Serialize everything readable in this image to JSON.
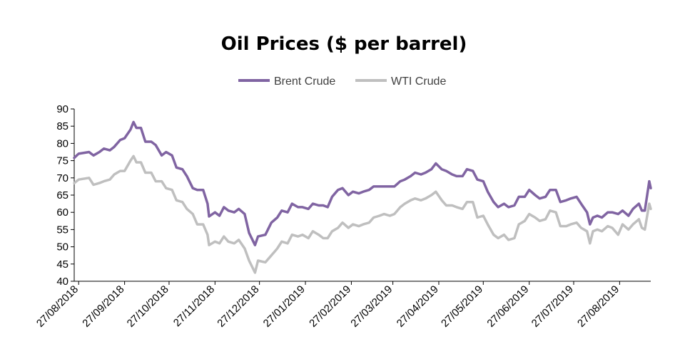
{
  "chart_data": {
    "type": "line",
    "title": "Oil Prices ($ per barrel)",
    "xlabel": "",
    "ylabel": "",
    "ylim": [
      40,
      90
    ],
    "yticks": [
      "40",
      "45",
      "50",
      "55",
      "60",
      "65",
      "70",
      "75",
      "80",
      "85",
      "90"
    ],
    "xlim": [
      "2018-08-24",
      "2019-09-17"
    ],
    "xticks": [
      "27/08/2018",
      "27/09/2018",
      "27/10/2018",
      "27/11/2018",
      "27/12/2018",
      "27/01/2019",
      "27/02/2019",
      "27/03/2019",
      "27/04/2019",
      "27/05/2019",
      "27/06/2019",
      "27/07/2019",
      "27/08/2019"
    ],
    "grid": false,
    "legend": "top-center",
    "series": [
      {
        "name": "Brent Crude",
        "color": "#8064A2",
        "points": [
          [
            "2018-08-24",
            75.8
          ],
          [
            "2018-08-27",
            77.0
          ],
          [
            "2018-09-03",
            77.5
          ],
          [
            "2018-09-06",
            76.5
          ],
          [
            "2018-09-10",
            77.5
          ],
          [
            "2018-09-13",
            78.5
          ],
          [
            "2018-09-17",
            78.0
          ],
          [
            "2018-09-20",
            79.0
          ],
          [
            "2018-09-24",
            81.0
          ],
          [
            "2018-09-27",
            81.5
          ],
          [
            "2018-10-01",
            84.0
          ],
          [
            "2018-10-03",
            86.2
          ],
          [
            "2018-10-05",
            84.5
          ],
          [
            "2018-10-08",
            84.5
          ],
          [
            "2018-10-11",
            80.5
          ],
          [
            "2018-10-15",
            80.5
          ],
          [
            "2018-10-18",
            79.5
          ],
          [
            "2018-10-22",
            76.5
          ],
          [
            "2018-10-25",
            77.5
          ],
          [
            "2018-10-29",
            76.5
          ],
          [
            "2018-11-01",
            73.0
          ],
          [
            "2018-11-05",
            72.5
          ],
          [
            "2018-11-08",
            70.5
          ],
          [
            "2018-11-12",
            67.0
          ],
          [
            "2018-11-15",
            66.5
          ],
          [
            "2018-11-19",
            66.5
          ],
          [
            "2018-11-22",
            62.5
          ],
          [
            "2018-11-23",
            58.8
          ],
          [
            "2018-11-27",
            60.0
          ],
          [
            "2018-11-30",
            59.0
          ],
          [
            "2018-12-03",
            61.5
          ],
          [
            "2018-12-06",
            60.5
          ],
          [
            "2018-12-10",
            60.0
          ],
          [
            "2018-12-13",
            61.0
          ],
          [
            "2018-12-17",
            59.5
          ],
          [
            "2018-12-20",
            54.0
          ],
          [
            "2018-12-24",
            50.5
          ],
          [
            "2018-12-26",
            53.0
          ],
          [
            "2018-12-31",
            53.5
          ],
          [
            "2019-01-04",
            57.0
          ],
          [
            "2019-01-08",
            58.5
          ],
          [
            "2019-01-11",
            60.5
          ],
          [
            "2019-01-15",
            60.0
          ],
          [
            "2019-01-18",
            62.5
          ],
          [
            "2019-01-22",
            61.5
          ],
          [
            "2019-01-25",
            61.5
          ],
          [
            "2019-01-29",
            61.0
          ],
          [
            "2019-02-01",
            62.5
          ],
          [
            "2019-02-05",
            62.0
          ],
          [
            "2019-02-08",
            62.0
          ],
          [
            "2019-02-11",
            61.5
          ],
          [
            "2019-02-14",
            64.5
          ],
          [
            "2019-02-18",
            66.5
          ],
          [
            "2019-02-21",
            67.0
          ],
          [
            "2019-02-25",
            65.0
          ],
          [
            "2019-02-28",
            66.0
          ],
          [
            "2019-03-04",
            65.5
          ],
          [
            "2019-03-07",
            66.0
          ],
          [
            "2019-03-11",
            66.5
          ],
          [
            "2019-03-14",
            67.5
          ],
          [
            "2019-03-18",
            67.5
          ],
          [
            "2019-03-21",
            67.5
          ],
          [
            "2019-03-25",
            67.5
          ],
          [
            "2019-03-28",
            67.5
          ],
          [
            "2019-04-01",
            69.0
          ],
          [
            "2019-04-04",
            69.5
          ],
          [
            "2019-04-08",
            70.5
          ],
          [
            "2019-04-11",
            71.5
          ],
          [
            "2019-04-15",
            71.0
          ],
          [
            "2019-04-18",
            71.5
          ],
          [
            "2019-04-22",
            72.5
          ],
          [
            "2019-04-25",
            74.2
          ],
          [
            "2019-04-29",
            72.5
          ],
          [
            "2019-05-02",
            72.0
          ],
          [
            "2019-05-06",
            71.0
          ],
          [
            "2019-05-09",
            70.5
          ],
          [
            "2019-05-13",
            70.5
          ],
          [
            "2019-05-16",
            72.5
          ],
          [
            "2019-05-20",
            72.0
          ],
          [
            "2019-05-23",
            69.5
          ],
          [
            "2019-05-27",
            69.0
          ],
          [
            "2019-05-30",
            66.0
          ],
          [
            "2019-06-03",
            63.0
          ],
          [
            "2019-06-06",
            61.5
          ],
          [
            "2019-06-10",
            62.5
          ],
          [
            "2019-06-13",
            61.5
          ],
          [
            "2019-06-17",
            62.0
          ],
          [
            "2019-06-20",
            64.5
          ],
          [
            "2019-06-24",
            64.5
          ],
          [
            "2019-06-27",
            66.5
          ],
          [
            "2019-07-01",
            65.0
          ],
          [
            "2019-07-04",
            64.0
          ],
          [
            "2019-07-08",
            64.5
          ],
          [
            "2019-07-11",
            66.5
          ],
          [
            "2019-07-15",
            66.5
          ],
          [
            "2019-07-18",
            63.0
          ],
          [
            "2019-07-22",
            63.5
          ],
          [
            "2019-07-25",
            64.0
          ],
          [
            "2019-07-29",
            64.5
          ],
          [
            "2019-08-01",
            62.5
          ],
          [
            "2019-08-05",
            60.0
          ],
          [
            "2019-08-07",
            56.5
          ],
          [
            "2019-08-09",
            58.5
          ],
          [
            "2019-08-12",
            59.0
          ],
          [
            "2019-08-15",
            58.5
          ],
          [
            "2019-08-19",
            60.0
          ],
          [
            "2019-08-22",
            60.0
          ],
          [
            "2019-08-26",
            59.5
          ],
          [
            "2019-08-29",
            60.5
          ],
          [
            "2019-09-02",
            59.0
          ],
          [
            "2019-09-05",
            61.0
          ],
          [
            "2019-09-09",
            62.5
          ],
          [
            "2019-09-11",
            60.5
          ],
          [
            "2019-09-13",
            60.5
          ],
          [
            "2019-09-16",
            69.0
          ],
          [
            "2019-09-17",
            67.0
          ]
        ]
      },
      {
        "name": "WTI Crude",
        "color": "#BFBFBF",
        "points": [
          [
            "2018-08-24",
            68.5
          ],
          [
            "2018-08-27",
            69.5
          ],
          [
            "2018-09-03",
            70.0
          ],
          [
            "2018-09-06",
            68.0
          ],
          [
            "2018-09-10",
            68.5
          ],
          [
            "2018-09-13",
            69.0
          ],
          [
            "2018-09-17",
            69.5
          ],
          [
            "2018-09-20",
            71.0
          ],
          [
            "2018-09-24",
            72.0
          ],
          [
            "2018-09-27",
            72.0
          ],
          [
            "2018-10-01",
            75.0
          ],
          [
            "2018-10-03",
            76.3
          ],
          [
            "2018-10-05",
            74.5
          ],
          [
            "2018-10-08",
            74.5
          ],
          [
            "2018-10-11",
            71.5
          ],
          [
            "2018-10-15",
            71.5
          ],
          [
            "2018-10-18",
            69.0
          ],
          [
            "2018-10-22",
            69.0
          ],
          [
            "2018-10-25",
            67.0
          ],
          [
            "2018-10-29",
            66.5
          ],
          [
            "2018-11-01",
            63.5
          ],
          [
            "2018-11-05",
            63.0
          ],
          [
            "2018-11-08",
            61.0
          ],
          [
            "2018-11-12",
            59.5
          ],
          [
            "2018-11-15",
            56.5
          ],
          [
            "2018-11-19",
            56.5
          ],
          [
            "2018-11-22",
            53.5
          ],
          [
            "2018-11-23",
            50.5
          ],
          [
            "2018-11-27",
            51.5
          ],
          [
            "2018-11-30",
            51.0
          ],
          [
            "2018-12-03",
            53.0
          ],
          [
            "2018-12-06",
            51.5
          ],
          [
            "2018-12-10",
            51.0
          ],
          [
            "2018-12-13",
            52.0
          ],
          [
            "2018-12-17",
            49.5
          ],
          [
            "2018-12-20",
            46.0
          ],
          [
            "2018-12-24",
            42.5
          ],
          [
            "2018-12-26",
            46.0
          ],
          [
            "2018-12-31",
            45.5
          ],
          [
            "2019-01-04",
            47.5
          ],
          [
            "2019-01-08",
            49.5
          ],
          [
            "2019-01-11",
            51.5
          ],
          [
            "2019-01-15",
            51.0
          ],
          [
            "2019-01-18",
            53.5
          ],
          [
            "2019-01-22",
            53.0
          ],
          [
            "2019-01-25",
            53.5
          ],
          [
            "2019-01-29",
            52.5
          ],
          [
            "2019-02-01",
            54.5
          ],
          [
            "2019-02-05",
            53.5
          ],
          [
            "2019-02-08",
            52.5
          ],
          [
            "2019-02-11",
            52.5
          ],
          [
            "2019-02-14",
            54.5
          ],
          [
            "2019-02-18",
            55.5
          ],
          [
            "2019-02-21",
            57.0
          ],
          [
            "2019-02-25",
            55.5
          ],
          [
            "2019-02-28",
            56.5
          ],
          [
            "2019-03-04",
            56.0
          ],
          [
            "2019-03-07",
            56.5
          ],
          [
            "2019-03-11",
            57.0
          ],
          [
            "2019-03-14",
            58.5
          ],
          [
            "2019-03-18",
            59.0
          ],
          [
            "2019-03-21",
            59.5
          ],
          [
            "2019-03-25",
            59.0
          ],
          [
            "2019-03-28",
            59.5
          ],
          [
            "2019-04-01",
            61.5
          ],
          [
            "2019-04-04",
            62.5
          ],
          [
            "2019-04-08",
            63.5
          ],
          [
            "2019-04-11",
            64.0
          ],
          [
            "2019-04-15",
            63.5
          ],
          [
            "2019-04-18",
            64.0
          ],
          [
            "2019-04-22",
            65.0
          ],
          [
            "2019-04-25",
            66.0
          ],
          [
            "2019-04-29",
            63.5
          ],
          [
            "2019-05-02",
            62.0
          ],
          [
            "2019-05-06",
            62.0
          ],
          [
            "2019-05-09",
            61.5
          ],
          [
            "2019-05-13",
            61.0
          ],
          [
            "2019-05-16",
            63.0
          ],
          [
            "2019-05-20",
            63.0
          ],
          [
            "2019-05-23",
            58.5
          ],
          [
            "2019-05-27",
            59.0
          ],
          [
            "2019-05-30",
            56.5
          ],
          [
            "2019-06-03",
            53.5
          ],
          [
            "2019-06-06",
            52.5
          ],
          [
            "2019-06-10",
            53.5
          ],
          [
            "2019-06-13",
            52.0
          ],
          [
            "2019-06-17",
            52.5
          ],
          [
            "2019-06-20",
            56.5
          ],
          [
            "2019-06-24",
            57.5
          ],
          [
            "2019-06-27",
            59.5
          ],
          [
            "2019-07-01",
            58.5
          ],
          [
            "2019-07-04",
            57.5
          ],
          [
            "2019-07-08",
            58.0
          ],
          [
            "2019-07-11",
            60.5
          ],
          [
            "2019-07-15",
            60.0
          ],
          [
            "2019-07-18",
            56.0
          ],
          [
            "2019-07-22",
            56.0
          ],
          [
            "2019-07-25",
            56.5
          ],
          [
            "2019-07-29",
            57.0
          ],
          [
            "2019-08-01",
            55.5
          ],
          [
            "2019-08-05",
            54.5
          ],
          [
            "2019-08-07",
            51.0
          ],
          [
            "2019-08-09",
            54.5
          ],
          [
            "2019-08-12",
            55.0
          ],
          [
            "2019-08-15",
            54.5
          ],
          [
            "2019-08-19",
            56.0
          ],
          [
            "2019-08-22",
            55.5
          ],
          [
            "2019-08-26",
            53.5
          ],
          [
            "2019-08-29",
            56.5
          ],
          [
            "2019-09-02",
            55.0
          ],
          [
            "2019-09-05",
            56.5
          ],
          [
            "2019-09-09",
            58.0
          ],
          [
            "2019-09-11",
            55.5
          ],
          [
            "2019-09-13",
            55.0
          ],
          [
            "2019-09-16",
            62.5
          ],
          [
            "2019-09-17",
            61.0
          ]
        ]
      }
    ]
  }
}
